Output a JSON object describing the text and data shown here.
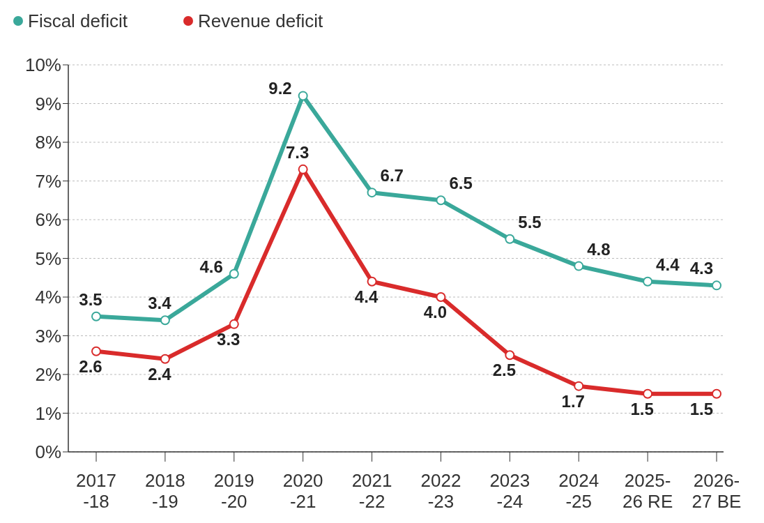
{
  "chart_data": {
    "type": "line",
    "categories": [
      "2017\n-18",
      "2018\n-19",
      "2019\n-20",
      "2020\n-21",
      "2021\n-22",
      "2022\n-23",
      "2023\n-24",
      "2024\n-25",
      "2025-\n26 RE",
      "2026-\n27 BE"
    ],
    "series": [
      {
        "name": "Fiscal deficit",
        "color": "#3aa89a",
        "values": [
          3.5,
          3.4,
          4.6,
          9.2,
          6.7,
          6.5,
          5.5,
          4.8,
          4.4,
          4.3
        ]
      },
      {
        "name": "Revenue deficit",
        "color": "#d92b2b",
        "values": [
          2.6,
          2.4,
          3.3,
          7.3,
          4.4,
          4.0,
          2.5,
          1.7,
          1.5,
          1.5
        ],
        "value_labels": [
          "2.6",
          "2.4",
          "3.3",
          "7.3",
          "4.4",
          "4.0",
          "2.5",
          "1.7",
          "1.5",
          "1.5"
        ]
      }
    ],
    "ylim": [
      0,
      10
    ],
    "yticks": [
      {
        "value": 0,
        "label": "0%"
      },
      {
        "value": 1,
        "label": "1%"
      },
      {
        "value": 2,
        "label": "2%"
      },
      {
        "value": 3,
        "label": "3%"
      },
      {
        "value": 4,
        "label": "4%"
      },
      {
        "value": 5,
        "label": "5%"
      },
      {
        "value": 6,
        "label": "6%"
      },
      {
        "value": 7,
        "label": "7%"
      },
      {
        "value": 8,
        "label": "8%"
      },
      {
        "value": 9,
        "label": "9%"
      },
      {
        "value": 10,
        "label": "10%"
      }
    ],
    "grid": "y",
    "legend": "top left",
    "marker": "circle",
    "line_style": "solid",
    "data_labels": true
  }
}
